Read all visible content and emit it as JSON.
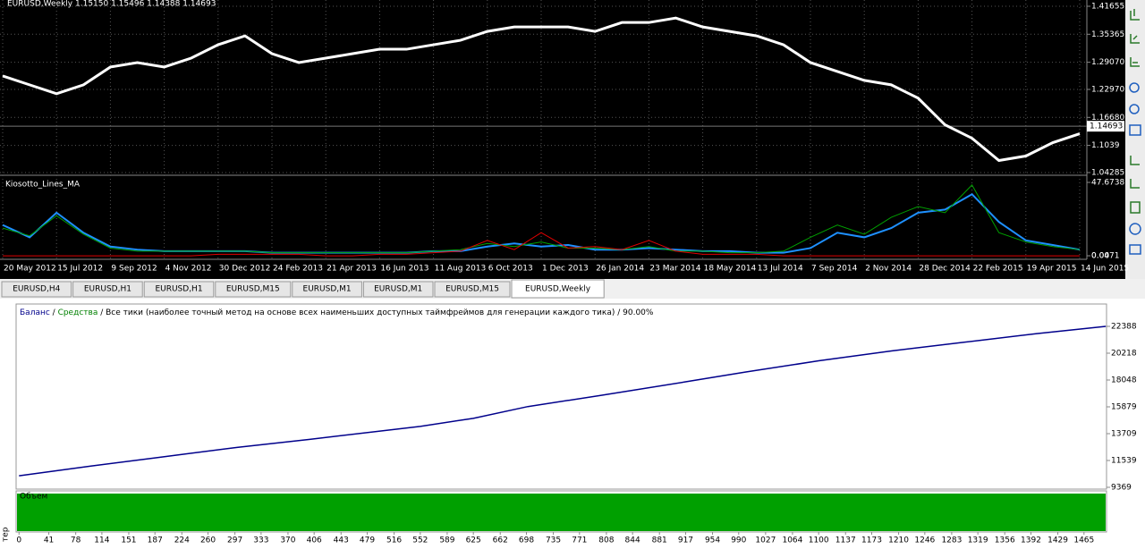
{
  "chart_data": [
    {
      "type": "line",
      "title": "EURUSD,Weekly",
      "annotation": "1.15150 1.15496 1.14388 1.14693",
      "categories": [
        "20 May 2012",
        null,
        "15 Jul 2012",
        null,
        "9 Sep 2012",
        null,
        "4 Nov 2012",
        null,
        "30 Dec 2012",
        null,
        "24 Feb 2013",
        null,
        "21 Apr 2013",
        null,
        "16 Jun 2013",
        null,
        "11 Aug 2013",
        null,
        "6 Oct 2013",
        null,
        "1 Dec 2013",
        null,
        "26 Jan 2014",
        null,
        "23 Mar 2014",
        null,
        "18 May 2014",
        null,
        "13 Jul 2014",
        null,
        "7 Sep 2014",
        null,
        "2 Nov 2014",
        null,
        "28 Dec 2014",
        null,
        "22 Feb 2015",
        null,
        "19 Apr 2015",
        null,
        "14 Jun 2015"
      ],
      "values": [
        1.26,
        1.24,
        1.22,
        1.24,
        1.28,
        1.29,
        1.28,
        1.3,
        1.33,
        1.35,
        1.31,
        1.29,
        1.3,
        1.31,
        1.32,
        1.32,
        1.33,
        1.34,
        1.36,
        1.37,
        1.37,
        1.37,
        1.36,
        1.38,
        1.38,
        1.39,
        1.37,
        1.36,
        1.35,
        1.33,
        1.29,
        1.27,
        1.25,
        1.24,
        1.21,
        1.15,
        1.12,
        1.07,
        1.08,
        1.11,
        1.13
      ],
      "color": "#ffffff",
      "current_price": 1.14693,
      "ylim": [
        1.0388,
        1.4306
      ],
      "yticks": [
        1.41655,
        1.35365,
        {
          "value": 1.2907,
          "label": "1.29070"
        },
        {
          "value": 1.2297,
          "label": "1.22970"
        },
        {
          "value": 1.1668,
          "label": "1.16680"
        },
        1.1039,
        1.04285
      ],
      "grid": true
    },
    {
      "type": "line",
      "title": "Kiosotto_Lines_MA",
      "series": [
        {
          "color": "#1e90ff",
          "values": [
            20,
            12,
            28,
            15,
            6,
            4,
            3,
            3,
            3,
            3,
            2,
            2,
            2,
            2,
            2,
            2,
            3,
            3,
            6,
            8,
            6,
            7,
            4,
            4,
            5,
            4,
            3,
            3,
            2,
            2,
            5,
            15,
            12,
            18,
            28,
            30,
            40,
            22,
            10,
            7,
            4
          ]
        },
        {
          "color": "#00a000",
          "values": [
            18,
            13,
            26,
            14,
            5,
            3,
            3,
            3,
            3,
            3,
            2,
            2,
            2,
            2,
            2,
            2,
            3,
            4,
            8,
            6,
            9,
            5,
            5,
            4,
            6,
            3,
            3,
            2,
            2,
            3,
            12,
            20,
            14,
            25,
            32,
            28,
            46,
            15,
            9,
            6,
            4
          ]
        },
        {
          "color": "#e00000",
          "values": [
            0,
            0,
            0,
            0,
            0,
            0,
            0,
            0,
            1,
            1,
            1,
            1,
            0,
            0,
            1,
            1,
            2,
            3,
            10,
            4,
            15,
            5,
            6,
            4,
            10,
            3,
            1,
            1,
            1,
            0,
            0,
            0,
            0,
            0,
            0,
            0,
            0,
            0,
            0,
            0,
            0
          ]
        }
      ],
      "ylim": [
        -2.28,
        51.74
      ],
      "yticks": [
        47.6738,
        0.0471,
        {
          "value": 0,
          "label": "0.00"
        }
      ]
    },
    {
      "type": "line",
      "separator": " / ",
      "model": "Все тики (наиболее точный метод на основе всех наименьших доступных таймфреймов для генерации каждого тика)",
      "quality": "90.00%",
      "series": [
        {
          "name": "Баланс",
          "color": "#00008b",
          "x": [
            0,
            100,
            187,
            300,
            400,
            552,
            625,
            700,
            800,
            917,
            1000,
            1100,
            1200,
            1300,
            1400,
            1495
          ],
          "values": [
            10300,
            11100,
            11750,
            12600,
            13250,
            14300,
            14950,
            15900,
            16800,
            17900,
            18700,
            19600,
            20400,
            21100,
            21800,
            22388
          ]
        },
        {
          "name": "Средства",
          "color": "#008000",
          "x": [],
          "values": []
        }
      ],
      "volume_label": "Объем",
      "xlim": [
        -4,
        1496
      ],
      "xticks": [
        0,
        41,
        78,
        114,
        151,
        187,
        224,
        260,
        297,
        333,
        370,
        406,
        443,
        479,
        516,
        552,
        589,
        625,
        662,
        698,
        735,
        771,
        808,
        844,
        881,
        917,
        954,
        990,
        1027,
        1064,
        1100,
        1137,
        1173,
        1210,
        1246,
        1283,
        1319,
        1356,
        1392,
        1429,
        1465
      ],
      "ylim": [
        9297,
        24196
      ],
      "yticks": [
        22388,
        20218,
        18048,
        15879,
        13709,
        11539,
        9369
      ]
    }
  ],
  "tabs": [
    "EURUSD,H4",
    "EURUSD,H1",
    "EURUSD,H1",
    "EURUSD,M15",
    "EURUSD,M1",
    "EURUSD,M1",
    "EURUSD,M15",
    "EURUSD,Weekly"
  ],
  "active_tab": 7,
  "side_label": "тер"
}
